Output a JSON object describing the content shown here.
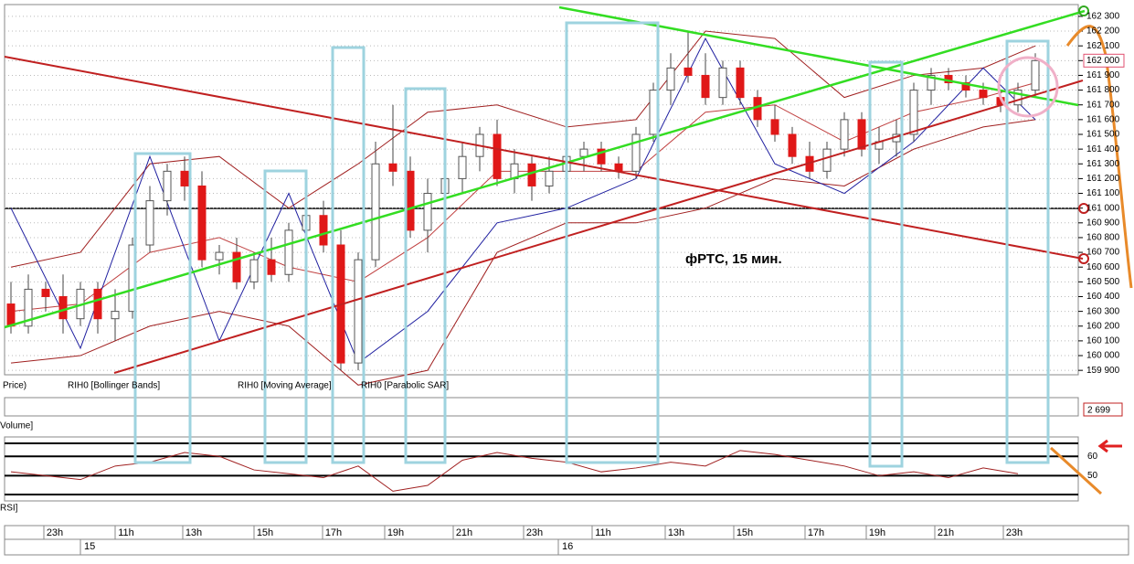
{
  "chart_data": {
    "type": "candlestick",
    "annotation": "фРТС,  15 мин.",
    "legend": [
      "Price)",
      "RIH0 [Bollinger Bands]",
      "RIH0 [Moving Average]",
      "RIH0 [Parabolic SAR]"
    ],
    "ylim": [
      159870,
      162380
    ],
    "yticks": [
      {
        "value": 159900,
        "label": "159 900"
      },
      {
        "value": 160000,
        "label": "160 000"
      },
      {
        "value": 160100,
        "label": "160 100"
      },
      {
        "value": 160200,
        "label": "160 200"
      },
      {
        "value": 160300,
        "label": "160 300"
      },
      {
        "value": 160400,
        "label": "160 400"
      },
      {
        "value": 160500,
        "label": "160 500"
      },
      {
        "value": 160600,
        "label": "160 600"
      },
      {
        "value": 160700,
        "label": "160 700"
      },
      {
        "value": 160800,
        "label": "160 800"
      },
      {
        "value": 160900,
        "label": "160 900"
      },
      {
        "value": 161000,
        "label": "161 000"
      },
      {
        "value": 161100,
        "label": "161 100"
      },
      {
        "value": 161200,
        "label": "161 200"
      },
      {
        "value": 161300,
        "label": "161 300"
      },
      {
        "value": 161400,
        "label": "161 400"
      },
      {
        "value": 161500,
        "label": "161 500"
      },
      {
        "value": 161600,
        "label": "161 600"
      },
      {
        "value": 161700,
        "label": "161 700"
      },
      {
        "value": 161800,
        "label": "161 800"
      },
      {
        "value": 161900,
        "label": "161 900"
      },
      {
        "value": 162000,
        "label": "162 000"
      },
      {
        "value": 162100,
        "label": "162 100"
      },
      {
        "value": 162200,
        "label": "162 200"
      },
      {
        "value": 162300,
        "label": "162 300"
      }
    ],
    "last_price": 162000,
    "open": [
      160350,
      160200,
      160450,
      160400,
      160250,
      160450,
      160250,
      160300,
      160750,
      161050,
      161250,
      161150,
      160650,
      160700,
      160500,
      160650,
      160550,
      160850,
      160950,
      160750,
      159950,
      160650,
      161300,
      161250,
      160850,
      161100,
      161200,
      161350,
      161500,
      161200,
      161300,
      161150,
      161250,
      161350,
      161400,
      161300,
      161250,
      161500,
      161800,
      161950,
      161900,
      161750,
      161950,
      161750,
      161600,
      161500,
      161350,
      161250,
      161400,
      161600,
      161400,
      161450,
      161500,
      161800,
      161900,
      161850,
      161800,
      161750,
      161700,
      161800
    ],
    "high": [
      160500,
      160550,
      160500,
      160550,
      160500,
      160500,
      160450,
      160800,
      161150,
      161300,
      161350,
      161250,
      160750,
      160800,
      160700,
      160800,
      160900,
      161100,
      161050,
      160850,
      160700,
      161450,
      161700,
      161350,
      161200,
      161250,
      161450,
      161550,
      161600,
      161400,
      161350,
      161350,
      161400,
      161450,
      161450,
      161350,
      161550,
      161850,
      162050,
      162200,
      162050,
      162000,
      162000,
      161800,
      161700,
      161550,
      161450,
      161450,
      161650,
      161650,
      161550,
      161600,
      161850,
      161950,
      161950,
      161900,
      161850,
      161800,
      161850,
      162050
    ],
    "low": [
      160150,
      160150,
      160300,
      160150,
      160200,
      160150,
      160100,
      160250,
      160700,
      160950,
      161050,
      160600,
      160550,
      160450,
      160450,
      160500,
      160500,
      160800,
      160700,
      159900,
      159900,
      160600,
      161150,
      160800,
      160700,
      160900,
      161100,
      161250,
      161150,
      161100,
      161050,
      161100,
      161150,
      161250,
      161250,
      161200,
      161200,
      161450,
      161700,
      161850,
      161700,
      161700,
      161700,
      161550,
      161450,
      161300,
      161200,
      161200,
      161350,
      161350,
      161300,
      161350,
      161450,
      161700,
      161800,
      161750,
      161700,
      161650,
      161650,
      161750
    ],
    "close": [
      160200,
      160450,
      160400,
      160250,
      160450,
      160250,
      160300,
      160750,
      161050,
      161250,
      161150,
      160650,
      160700,
      160500,
      160650,
      160550,
      160850,
      160950,
      160750,
      159950,
      160650,
      161300,
      161250,
      160850,
      161100,
      161200,
      161350,
      161500,
      161200,
      161300,
      161150,
      161250,
      161350,
      161400,
      161300,
      161250,
      161500,
      161800,
      161950,
      161900,
      161750,
      161950,
      161750,
      161600,
      161500,
      161350,
      161250,
      161400,
      161600,
      161400,
      161450,
      161500,
      161800,
      161900,
      161850,
      161800,
      161750,
      161700,
      161800,
      162000
    ],
    "indicator_index": [
      0,
      4,
      8,
      12,
      16,
      20,
      24,
      28,
      32,
      36,
      40,
      44,
      48,
      52,
      56,
      59
    ],
    "bollinger_upper": [
      160600,
      160700,
      161300,
      161350,
      161000,
      161300,
      161650,
      161700,
      161550,
      161600,
      162200,
      162150,
      161750,
      161900,
      161950,
      162100
    ],
    "bollinger_lower": [
      159950,
      160000,
      160200,
      160300,
      160200,
      159800,
      159900,
      160700,
      160900,
      160900,
      161000,
      161200,
      161150,
      161400,
      161550,
      161600
    ],
    "moving_average": [
      160300,
      160350,
      160700,
      160800,
      160600,
      160500,
      160800,
      161250,
      161250,
      161250,
      161650,
      161700,
      161450,
      161650,
      161750,
      161850
    ],
    "parabolic_sar": [
      161000,
      160050,
      161350,
      160100,
      161100,
      159950,
      160300,
      160900,
      161000,
      161200,
      162150,
      161300,
      161100,
      161450,
      161950,
      161600
    ],
    "volume_title": "Volume]",
    "volume_label": "2 699",
    "rsi_title": "RSI]",
    "rsi_ylim": [
      37,
      70
    ],
    "rsi_yticks": [
      60,
      50
    ],
    "rsi_index": [
      0,
      2,
      4,
      6,
      8,
      10,
      12,
      14,
      16,
      18,
      20,
      22,
      24,
      26,
      28,
      30,
      32,
      34,
      36,
      38,
      40,
      42,
      44,
      46,
      48,
      50,
      52,
      54,
      56,
      58
    ],
    "rsi": [
      52,
      50,
      48,
      55,
      57,
      62,
      60,
      53,
      51,
      49,
      55,
      42,
      45,
      58,
      62,
      59,
      57,
      52,
      54,
      57,
      55,
      63,
      61,
      58,
      55,
      50,
      52,
      49,
      54,
      51
    ],
    "time_labels": [
      "23h",
      "11h",
      "13h",
      "15h",
      "17h",
      "19h",
      "21h",
      "23h",
      "11h",
      "13h",
      "15h",
      "17h",
      "19h",
      "21h",
      "23h"
    ],
    "date_labels": [
      "15",
      "16"
    ]
  }
}
